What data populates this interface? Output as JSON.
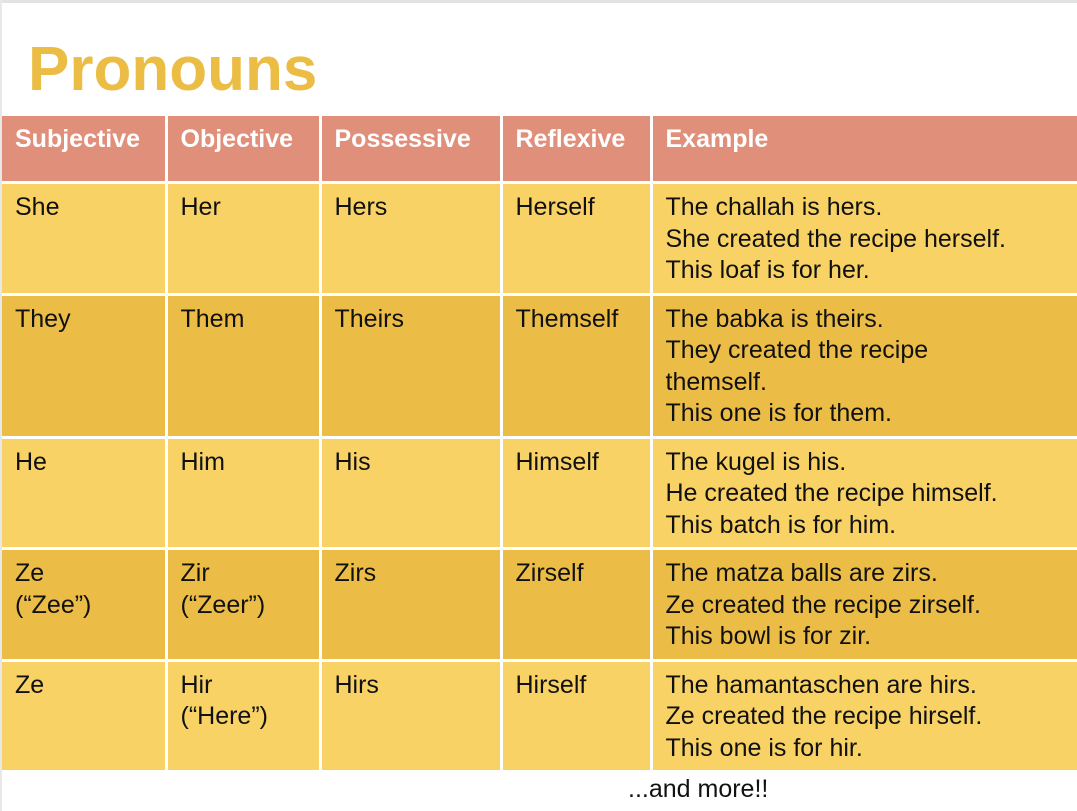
{
  "title": "Pronouns",
  "headers": [
    "Subjective",
    "Objective",
    "Possessive",
    "Reflexive",
    "Example"
  ],
  "rows": [
    {
      "subjective": [
        "She"
      ],
      "objective": [
        "Her"
      ],
      "possessive": [
        "Hers"
      ],
      "reflexive": [
        "Herself"
      ],
      "example": [
        "The challah is hers.",
        "She created the recipe herself.",
        "This loaf is for her."
      ]
    },
    {
      "subjective": [
        "They"
      ],
      "objective": [
        "Them"
      ],
      "possessive": [
        "Theirs"
      ],
      "reflexive": [
        "Themself"
      ],
      "example": [
        "The babka is theirs.",
        "They created the recipe",
        "themself.",
        "This one is for them."
      ]
    },
    {
      "subjective": [
        "He"
      ],
      "objective": [
        "Him"
      ],
      "possessive": [
        "His"
      ],
      "reflexive": [
        "Himself"
      ],
      "example": [
        "The kugel is his.",
        "He created the recipe himself.",
        "This batch is for him."
      ]
    },
    {
      "subjective": [
        "Ze",
        "(“Zee”)"
      ],
      "objective": [
        "Zir",
        "(“Zeer”)"
      ],
      "possessive": [
        "Zirs"
      ],
      "reflexive": [
        "Zirself"
      ],
      "example": [
        "The matza balls are zirs.",
        "Ze created the recipe zirself.",
        "This bowl is for zir."
      ]
    },
    {
      "subjective": [
        "Ze"
      ],
      "objective": [
        "Hir",
        "(“Here”)"
      ],
      "possessive": [
        "Hirs"
      ],
      "reflexive": [
        "Hirself"
      ],
      "example": [
        "The hamantaschen are hirs.",
        "Ze created the recipe hirself.",
        "This one is for hir."
      ]
    }
  ],
  "footer": "...and more!!",
  "colors": {
    "title": "#ecbd44",
    "header": "#e08f7b",
    "row_light": "#f8d264",
    "row_dark": "#ebbd47"
  }
}
